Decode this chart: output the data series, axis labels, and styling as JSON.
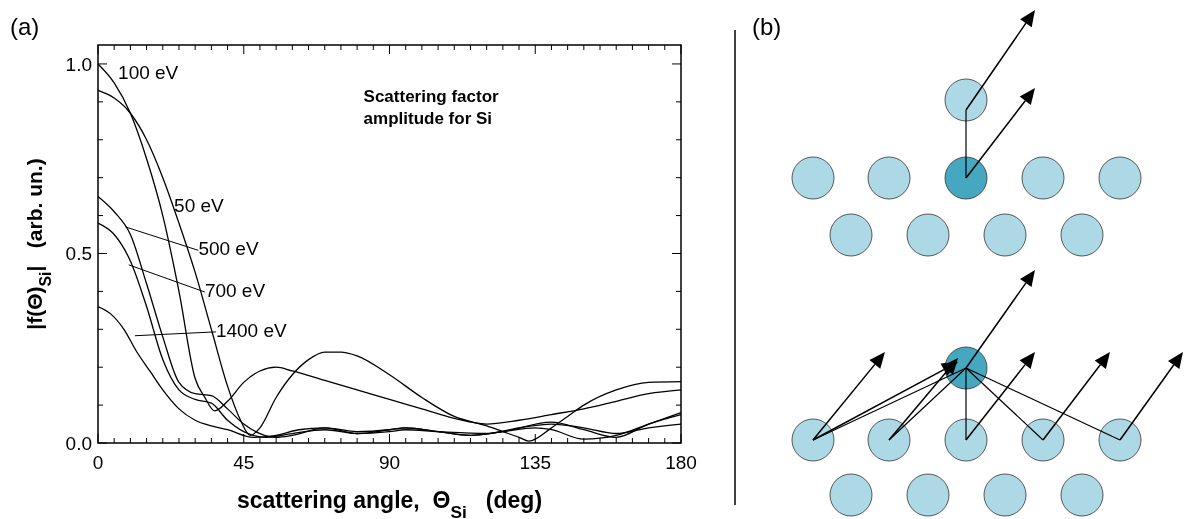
{
  "chart_data": {
    "type": "line",
    "xlabel": "scattering angle,  Θ$_{Si}$   (deg)",
    "ylabel": "|f(Θ)$_{Si}$|   (arb. un.)",
    "annotations": [
      "Scattering factor amplitude for Si",
      "(a)",
      "(b)"
    ],
    "xlim": [
      0,
      180
    ],
    "ylim": [
      0,
      1.05
    ],
    "xticks": [
      0,
      {
        "value": 5,
        "label": null
      },
      {
        "value": 10,
        "label": null
      },
      {
        "value": 15,
        "label": null
      },
      {
        "value": 20,
        "label": null
      },
      {
        "value": 25,
        "label": null
      },
      {
        "value": 30,
        "label": null
      },
      {
        "value": 35,
        "label": null
      },
      {
        "value": 40,
        "label": null
      },
      45,
      {
        "value": 50,
        "label": null
      },
      {
        "value": 55,
        "label": null
      },
      {
        "value": 60,
        "label": null
      },
      {
        "value": 65,
        "label": null
      },
      {
        "value": 70,
        "label": null
      },
      {
        "value": 75,
        "label": null
      },
      {
        "value": 80,
        "label": null
      },
      {
        "value": 85,
        "label": null
      },
      90,
      {
        "value": 95,
        "label": null
      },
      {
        "value": 100,
        "label": null
      },
      {
        "value": 105,
        "label": null
      },
      {
        "value": 110,
        "label": null
      },
      {
        "value": 115,
        "label": null
      },
      {
        "value": 120,
        "label": null
      },
      {
        "value": 125,
        "label": null
      },
      {
        "value": 130,
        "label": null
      },
      135,
      {
        "value": 140,
        "label": null
      },
      {
        "value": 145,
        "label": null
      },
      {
        "value": 150,
        "label": null
      },
      {
        "value": 155,
        "label": null
      },
      {
        "value": 160,
        "label": null
      },
      {
        "value": 165,
        "label": null
      },
      {
        "value": 170,
        "label": null
      },
      {
        "value": 175,
        "label": null
      },
      180
    ],
    "yticks": [
      {
        "value": 0,
        "label": "0.0"
      },
      {
        "value": 0.1,
        "label": null
      },
      {
        "value": 0.2,
        "label": null
      },
      {
        "value": 0.3,
        "label": null
      },
      {
        "value": 0.4,
        "label": null
      },
      0.5,
      {
        "value": 0.6,
        "label": null
      },
      {
        "value": 0.7,
        "label": null
      },
      {
        "value": 0.8,
        "label": null
      },
      {
        "value": 0.9,
        "label": null
      },
      {
        "value": 1,
        "label": "1.0"
      }
    ],
    "grid": false,
    "legend": "left",
    "marker": "none",
    "line_style": "solid",
    "series": [
      {
        "name": "100 eV",
        "color": "#000000",
        "x": [
          0,
          5,
          10,
          15,
          20,
          25,
          30,
          33,
          36,
          40,
          45,
          50,
          55,
          60,
          70,
          80,
          90,
          100,
          110,
          120,
          130,
          140,
          150,
          160,
          170,
          180
        ],
        "values": [
          1.0,
          0.95,
          0.87,
          0.75,
          0.6,
          0.4,
          0.17,
          0.12,
          0.085,
          0.11,
          0.16,
          0.19,
          0.2,
          0.19,
          0.165,
          0.14,
          0.115,
          0.09,
          0.065,
          0.05,
          0.06,
          0.075,
          0.09,
          0.11,
          0.13,
          0.14
        ]
      },
      {
        "name": "50 eV",
        "color": "#000000",
        "x": [
          0,
          5,
          10,
          15,
          20,
          25,
          30,
          35,
          40,
          44,
          47,
          50,
          55,
          60,
          65,
          70,
          75,
          80,
          90,
          100,
          110,
          120,
          125,
          130,
          133,
          140,
          145,
          150,
          160,
          170,
          180
        ],
        "values": [
          0.93,
          0.91,
          0.87,
          0.8,
          0.7,
          0.58,
          0.45,
          0.3,
          0.15,
          0.06,
          0.02,
          0.04,
          0.12,
          0.18,
          0.22,
          0.24,
          0.24,
          0.23,
          0.18,
          0.12,
          0.07,
          0.045,
          0.03,
          0.015,
          0.005,
          0.04,
          0.07,
          0.1,
          0.14,
          0.16,
          0.162
        ]
      },
      {
        "name": "500 eV",
        "color": "#000000",
        "x": [
          0,
          5,
          10,
          15,
          20,
          25,
          30,
          35,
          40,
          45,
          50,
          55,
          60,
          70,
          80,
          90,
          95,
          105,
          115,
          125,
          140,
          150,
          160,
          170,
          180
        ],
        "values": [
          0.65,
          0.61,
          0.55,
          0.42,
          0.28,
          0.16,
          0.13,
          0.125,
          0.09,
          0.05,
          0.025,
          0.015,
          0.02,
          0.04,
          0.025,
          0.035,
          0.04,
          0.03,
          0.02,
          0.03,
          0.055,
          0.035,
          0.015,
          0.05,
          0.075
        ]
      },
      {
        "name": "700 eV",
        "color": "#000000",
        "x": [
          0,
          5,
          10,
          15,
          20,
          25,
          30,
          35,
          40,
          45,
          52,
          60,
          70,
          80,
          90,
          95,
          105,
          120,
          130,
          140,
          150,
          160,
          170,
          180
        ],
        "values": [
          0.58,
          0.55,
          0.48,
          0.36,
          0.22,
          0.14,
          0.115,
          0.105,
          0.06,
          0.03,
          0.015,
          0.025,
          0.035,
          0.025,
          0.03,
          0.035,
          0.03,
          0.025,
          0.04,
          0.05,
          0.04,
          0.025,
          0.04,
          0.05
        ]
      },
      {
        "name": "1400 eV",
        "color": "#000000",
        "x": [
          0,
          4,
          8,
          12,
          16,
          20,
          25,
          30,
          35,
          40,
          48,
          55,
          62,
          70,
          80,
          90,
          95,
          105,
          115,
          125,
          135,
          140,
          150,
          160,
          170,
          180
        ],
        "values": [
          0.36,
          0.34,
          0.3,
          0.24,
          0.19,
          0.14,
          0.09,
          0.06,
          0.045,
          0.035,
          0.015,
          0.02,
          0.035,
          0.04,
          0.03,
          0.035,
          0.04,
          0.03,
          0.02,
          0.03,
          0.04,
          0.035,
          0.01,
          0.02,
          0.05,
          0.08
        ]
      }
    ]
  }
}
